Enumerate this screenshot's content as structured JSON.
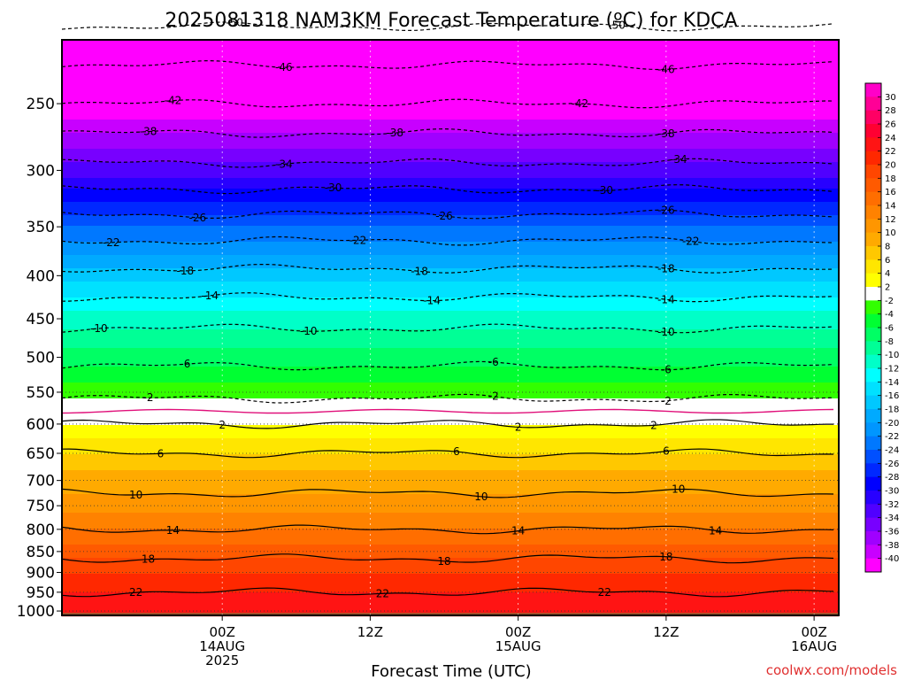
{
  "chart_data": {
    "type": "heatmap",
    "title": "2025081318 NAM3KM Forecast Temperature (ºC) for KDCA",
    "xlabel": "Forecast Time (UTC)",
    "ylabel": "",
    "credit": "coolwx.com/models",
    "y_axis": {
      "scale": "log",
      "range": [
        1012,
        210
      ],
      "ticks": [
        "250",
        "300",
        "350",
        "400",
        "450",
        "500",
        "550",
        "600",
        "650",
        "700",
        "750",
        "800",
        "850",
        "900",
        "950",
        "1000"
      ]
    },
    "x_axis": {
      "range_hours": [
        -7,
        54
      ],
      "ticks": [
        {
          "hour": 6,
          "lines": [
            "00Z",
            "14AUG",
            "2025"
          ]
        },
        {
          "hour": 18,
          "lines": [
            "12Z"
          ]
        },
        {
          "hour": 30,
          "lines": [
            "00Z",
            "15AUG"
          ]
        },
        {
          "hour": 42,
          "lines": [
            "12Z"
          ]
        },
        {
          "hour": 54,
          "lines": [
            "00Z",
            "16AUG"
          ]
        }
      ]
    },
    "levels_p": [
      1000,
      950,
      900,
      850,
      800,
      750,
      700,
      650,
      600,
      550,
      500,
      450,
      400,
      350,
      300,
      250,
      225
    ],
    "temperature_profile": [
      24,
      22,
      20,
      17,
      14,
      11,
      9,
      6,
      2,
      -3,
      -7,
      -11,
      -17,
      -24,
      -33,
      -42,
      -46
    ],
    "contour_labels": [
      {
        "value": "-50",
        "x_hours": [
          7,
          38
        ]
      },
      {
        "value": "-46",
        "x_hours": [
          11,
          42
        ]
      },
      {
        "value": "-42",
        "x_hours": [
          2,
          35
        ]
      },
      {
        "value": "-38",
        "x_hours": [
          0,
          20,
          42
        ]
      },
      {
        "value": "-34",
        "x_hours": [
          11,
          43
        ]
      },
      {
        "value": "-30",
        "x_hours": [
          15,
          37
        ]
      },
      {
        "value": "-26",
        "x_hours": [
          4,
          24,
          42
        ]
      },
      {
        "value": "-22",
        "x_hours": [
          -3,
          17,
          44
        ]
      },
      {
        "value": "-18",
        "x_hours": [
          3,
          22,
          42
        ]
      },
      {
        "value": "-14",
        "x_hours": [
          5,
          23,
          42
        ]
      },
      {
        "value": "-10",
        "x_hours": [
          -4,
          13,
          42
        ]
      },
      {
        "value": "-6",
        "x_hours": [
          3,
          28,
          42
        ]
      },
      {
        "value": "-2",
        "x_hours": [
          0,
          28,
          42
        ]
      },
      {
        "value": "2",
        "x_hours": [
          6,
          30,
          41
        ]
      },
      {
        "value": "6",
        "x_hours": [
          1,
          25,
          42
        ]
      },
      {
        "value": "10",
        "x_hours": [
          -1,
          27,
          43
        ]
      },
      {
        "value": "14",
        "x_hours": [
          2,
          30,
          46
        ]
      },
      {
        "value": "18",
        "x_hours": [
          0,
          24,
          42
        ]
      },
      {
        "value": "22",
        "x_hours": [
          -1,
          19,
          37
        ]
      }
    ],
    "colorbar": {
      "ticks": [
        "30",
        "28",
        "26",
        "24",
        "22",
        "20",
        "18",
        "16",
        "14",
        "12",
        "10",
        "8",
        "6",
        "4",
        "2",
        "-2",
        "-4",
        "-6",
        "-8",
        "-10",
        "-12",
        "-14",
        "-16",
        "-18",
        "-20",
        "-22",
        "-24",
        "-26",
        "-28",
        "-30",
        "-32",
        "-34",
        "-36",
        "-38",
        "-40"
      ],
      "colors": [
        "#ff00c8",
        "#ff0096",
        "#ff0064",
        "#ff0032",
        "#ff1414",
        "#ff2800",
        "#ff4600",
        "#ff5a00",
        "#ff6e00",
        "#ff8200",
        "#ff9600",
        "#ffaa00",
        "#ffc800",
        "#ffe600",
        "#ffff00",
        "#ffffff",
        "#32ff00",
        "#00ff32",
        "#00ff64",
        "#00ff96",
        "#00ffc8",
        "#00ffff",
        "#00e1ff",
        "#00c8ff",
        "#00aaff",
        "#0096ff",
        "#0078ff",
        "#0050ff",
        "#0028ff",
        "#0000ff",
        "#2800ff",
        "#5000ff",
        "#7800ff",
        "#a000ff",
        "#c800ff",
        "#ff00ff"
      ]
    }
  }
}
